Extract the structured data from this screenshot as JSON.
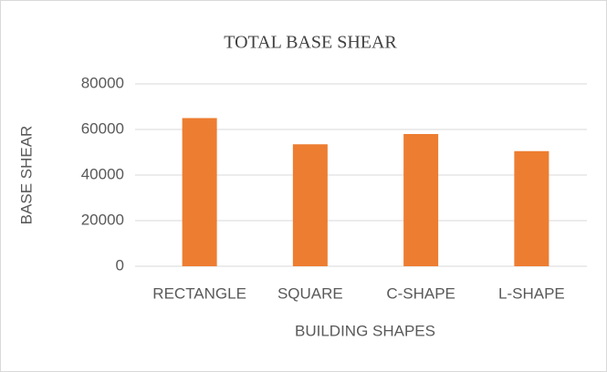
{
  "chart_data": {
    "type": "bar",
    "title": "TOTAL BASE SHEAR",
    "x_label": "BUILDING SHAPES",
    "y_label": "BASE SHEAR",
    "categories": [
      "RECTANGLE",
      "SQUARE",
      "C-SHAPE",
      "L-SHAPE"
    ],
    "values": [
      65000,
      53500,
      58000,
      50500
    ],
    "color": "#ed7d31",
    "ylim": [
      0,
      80000
    ],
    "yticks": [
      0,
      20000,
      40000,
      60000,
      80000
    ],
    "grid": true
  }
}
